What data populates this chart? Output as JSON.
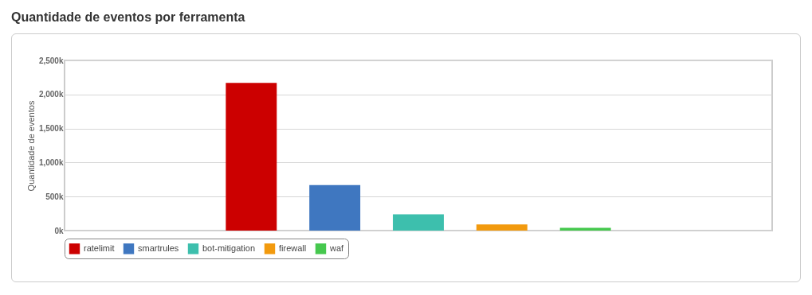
{
  "chart_data": {
    "type": "bar",
    "title": "Quantidade de eventos por ferramenta",
    "ylabel": "Quantidade de eventos",
    "categories": [
      null
    ],
    "series": [
      {
        "name": "ratelimit",
        "color": "#cc0000",
        "values": [
          2170000
        ]
      },
      {
        "name": "smartrules",
        "color": "#3f77c0",
        "values": [
          670000
        ]
      },
      {
        "name": "bot-mitigation",
        "color": "#3dbfad",
        "values": [
          240000
        ]
      },
      {
        "name": "firewall",
        "color": "#f29a0e",
        "values": [
          90000
        ]
      },
      {
        "name": "waf",
        "color": "#46c84e",
        "values": [
          40000
        ]
      }
    ],
    "ylim": [
      0,
      2500000
    ],
    "yticks": [
      {
        "value": 0,
        "label": "0k"
      },
      {
        "value": 500000,
        "label": "500k"
      },
      {
        "value": 1000000,
        "label": "1,000k"
      },
      {
        "value": 1500000,
        "label": "1,500k"
      },
      {
        "value": 2000000,
        "label": "2,000k"
      },
      {
        "value": 2500000,
        "label": "2,500k"
      }
    ],
    "grid": "y",
    "legend": "bottom"
  }
}
